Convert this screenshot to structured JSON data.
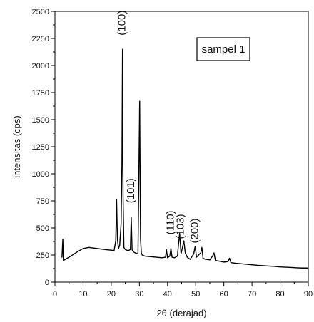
{
  "chart_data": {
    "type": "line",
    "xlabel": "2θ (derajad)",
    "ylabel": "intensitas (cps)",
    "xlim": [
      0,
      90
    ],
    "ylim": [
      0,
      2500
    ],
    "x_ticks": [
      0,
      10,
      20,
      30,
      40,
      50,
      60,
      70,
      80,
      90
    ],
    "y_ticks": [
      0,
      250,
      500,
      750,
      1000,
      1250,
      1500,
      1750,
      2000,
      2250,
      2500
    ],
    "grid": false,
    "legend": {
      "text": "sampel 1",
      "placement": "top-right"
    },
    "series": [
      {
        "color": "#000000",
        "x": [
          2.5,
          2.8,
          3,
          5,
          8,
          10,
          12,
          15,
          18,
          20,
          21,
          21.6,
          21.9,
          22.2,
          22.6,
          23,
          23.5,
          23.8,
          24.0,
          24.2,
          24.5,
          25,
          26,
          26.8,
          27.1,
          27.4,
          27.8,
          28.5,
          29.5,
          30.1,
          30.4,
          30.7,
          31,
          32,
          34,
          36,
          38,
          39.3,
          39.6,
          40,
          40.8,
          41.2,
          41.6,
          42.5,
          43.5,
          43.9,
          44.3,
          44.8,
          45.3,
          45.8,
          46.3,
          47,
          48,
          49.3,
          49.8,
          50.3,
          51,
          51.8,
          52.2,
          52.6,
          53.5,
          55,
          56,
          56.5,
          57,
          58,
          60,
          61.5,
          62,
          62.5,
          64,
          66,
          68,
          70,
          72,
          75,
          78,
          80,
          82,
          84,
          86,
          88,
          90
        ],
        "y": [
          230,
          395,
          200,
          230,
          280,
          310,
          320,
          310,
          300,
          295,
          290,
          380,
          760,
          390,
          310,
          340,
          540,
          1100,
          2150,
          800,
          320,
          300,
          290,
          300,
          600,
          300,
          280,
          270,
          260,
          1670,
          400,
          270,
          250,
          240,
          235,
          230,
          225,
          230,
          300,
          225,
          240,
          310,
          230,
          225,
          240,
          350,
          450,
          260,
          320,
          380,
          270,
          230,
          210,
          260,
          330,
          230,
          250,
          270,
          320,
          220,
          210,
          205,
          240,
          270,
          200,
          195,
          185,
          190,
          220,
          180,
          175,
          170,
          165,
          160,
          155,
          150,
          145,
          140,
          138,
          135,
          132,
          130,
          130
        ]
      }
    ],
    "annotations": [
      {
        "text": "(100)",
        "x": 24.0,
        "y": 2160
      },
      {
        "text": "(101)",
        "x": 27.2,
        "y": 610
      },
      {
        "text": "(110)",
        "x": 41.2,
        "y": 320
      },
      {
        "text": "(103)",
        "x": 44.8,
        "y": 280
      },
      {
        "text": "(200)",
        "x": 49.8,
        "y": 240
      }
    ]
  }
}
